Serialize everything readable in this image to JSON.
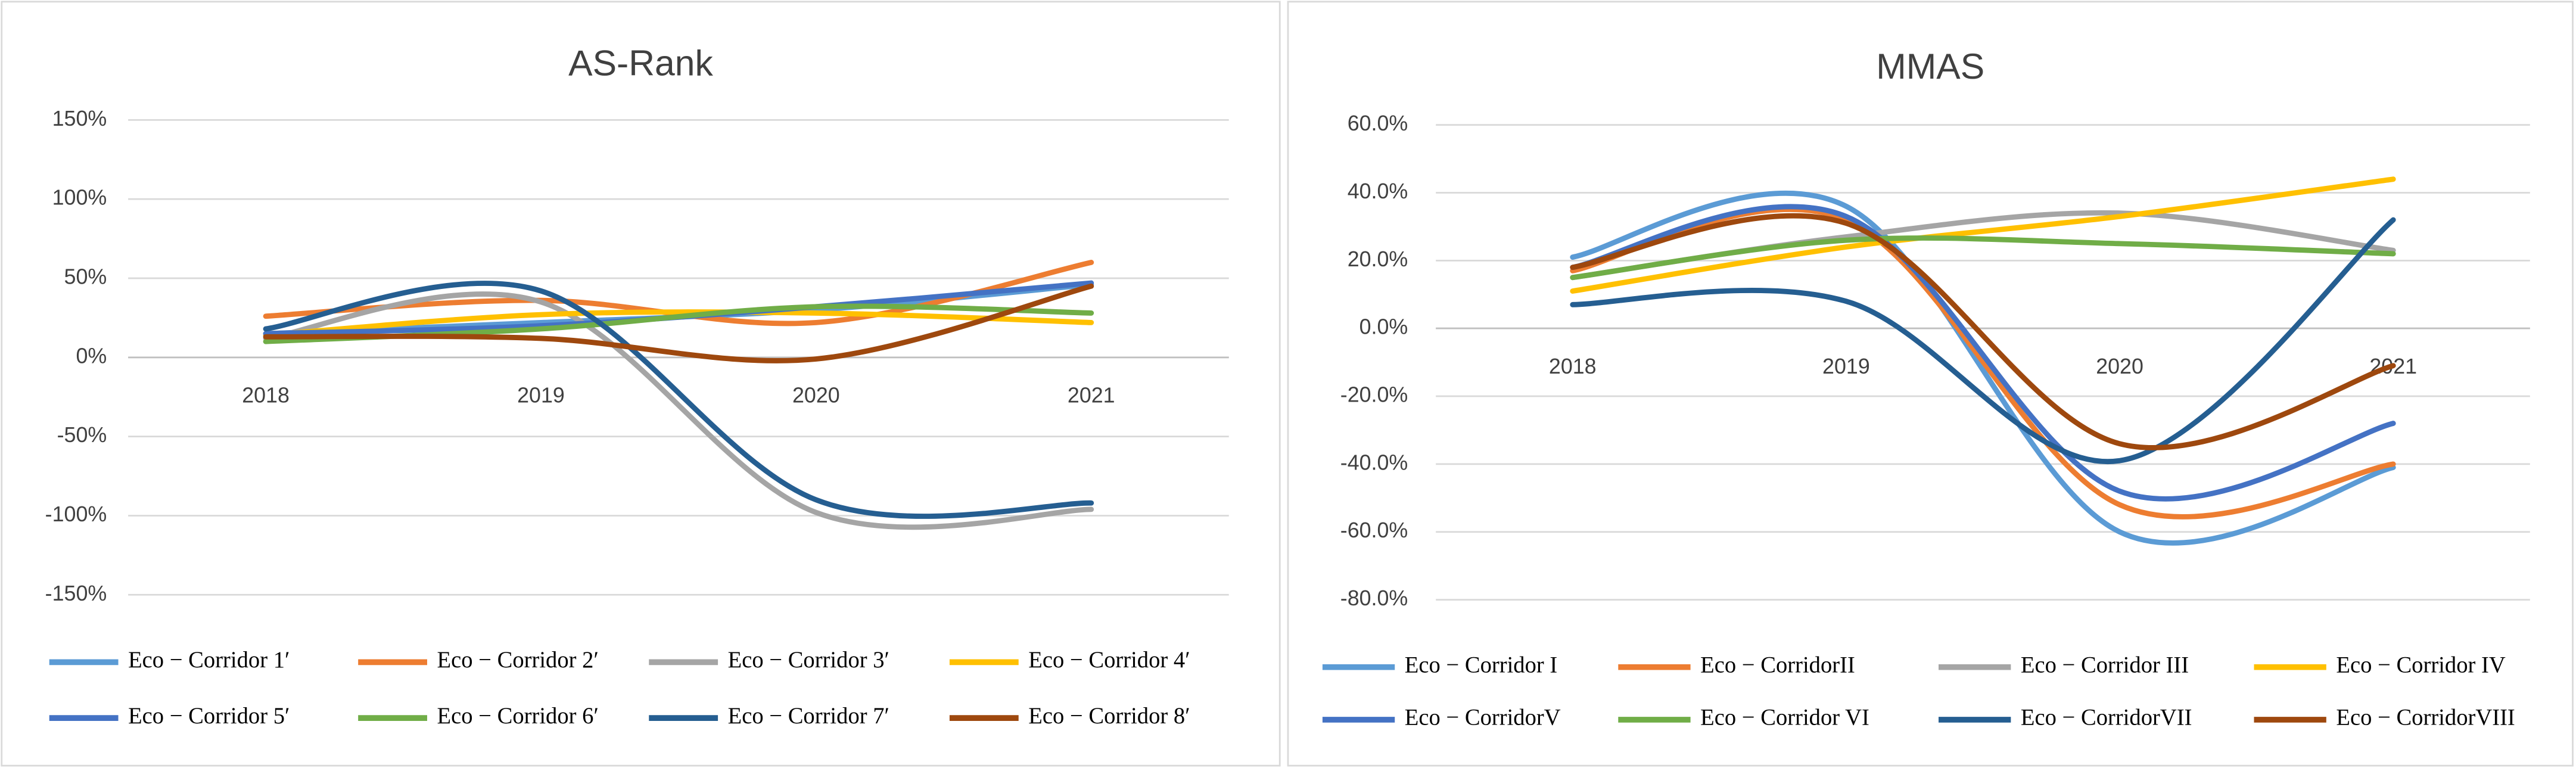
{
  "chart_data": [
    {
      "type": "line",
      "title": "AS-Rank",
      "categories": [
        "2018",
        "2019",
        "2020",
        "2021"
      ],
      "ylim": [
        -150,
        150
      ],
      "yticks": [
        {
          "value": -150,
          "label": "-150%"
        },
        {
          "value": -100,
          "label": "-100%"
        },
        {
          "value": -50,
          "label": "-50%"
        },
        {
          "value": 0,
          "label": "0%"
        },
        {
          "value": 50,
          "label": "50%"
        },
        {
          "value": 100,
          "label": "100%"
        },
        {
          "value": 150,
          "label": "150%"
        }
      ],
      "grid": true,
      "smooth": true,
      "series": [
        {
          "name": "Eco − Corridor 1′",
          "color": "#5b9bd5",
          "values": [
            15,
            22,
            30,
            46
          ]
        },
        {
          "name": "Eco − Corridor 2′",
          "color": "#ed7d31",
          "values": [
            26,
            36,
            22,
            60
          ]
        },
        {
          "name": "Eco − Corridor 3′",
          "color": "#a5a5a5",
          "values": [
            12,
            35,
            -98,
            -96
          ]
        },
        {
          "name": "Eco − Corridor 4′",
          "color": "#ffc000",
          "values": [
            14,
            27,
            28,
            22
          ]
        },
        {
          "name": "Eco − Corridor 5′",
          "color": "#4472c4",
          "values": [
            15,
            20,
            32,
            47
          ]
        },
        {
          "name": "Eco − Corridor 6′",
          "color": "#70ad47",
          "values": [
            10,
            18,
            32,
            28
          ]
        },
        {
          "name": "Eco − Corridor 7′",
          "color": "#255e91",
          "values": [
            18,
            42,
            -90,
            -92
          ]
        },
        {
          "name": "Eco − Corridor 8′",
          "color": "#9e480e",
          "values": [
            13,
            12,
            -1,
            45
          ]
        }
      ]
    },
    {
      "type": "line",
      "title": "MMAS",
      "categories": [
        "2018",
        "2019",
        "2020",
        "2021"
      ],
      "ylim": [
        -80,
        60
      ],
      "yticks": [
        {
          "value": -80,
          "label": "-80.0%"
        },
        {
          "value": -60,
          "label": "-60.0%"
        },
        {
          "value": -40,
          "label": "-40.0%"
        },
        {
          "value": -20,
          "label": "-20.0%"
        },
        {
          "value": 0,
          "label": "0.0%"
        },
        {
          "value": 20,
          "label": "20.0%"
        },
        {
          "value": 40,
          "label": "40.0%"
        },
        {
          "value": 60,
          "label": "60.0%"
        }
      ],
      "grid": true,
      "smooth": true,
      "series": [
        {
          "name": "Eco − Corridor I",
          "color": "#5b9bd5",
          "values": [
            21,
            36,
            -60,
            -41
          ]
        },
        {
          "name": "Eco − CorridorII",
          "color": "#ed7d31",
          "values": [
            17,
            32,
            -52,
            -40
          ]
        },
        {
          "name": "Eco − Corridor III",
          "color": "#a5a5a5",
          "values": [
            15,
            27,
            34,
            23
          ]
        },
        {
          "name": "Eco − Corridor IV",
          "color": "#ffc000",
          "values": [
            11,
            24,
            33,
            44
          ]
        },
        {
          "name": "Eco − CorridorV",
          "color": "#4472c4",
          "values": [
            18,
            33,
            -48,
            -28
          ]
        },
        {
          "name": "Eco − Corridor VI",
          "color": "#70ad47",
          "values": [
            15,
            26,
            25,
            22
          ]
        },
        {
          "name": "Eco − CorridorVII",
          "color": "#255e91",
          "values": [
            7,
            8,
            -39,
            32
          ]
        },
        {
          "name": "Eco − CorridorVIII",
          "color": "#9e480e",
          "values": [
            18,
            31,
            -34,
            -11
          ]
        }
      ]
    }
  ]
}
